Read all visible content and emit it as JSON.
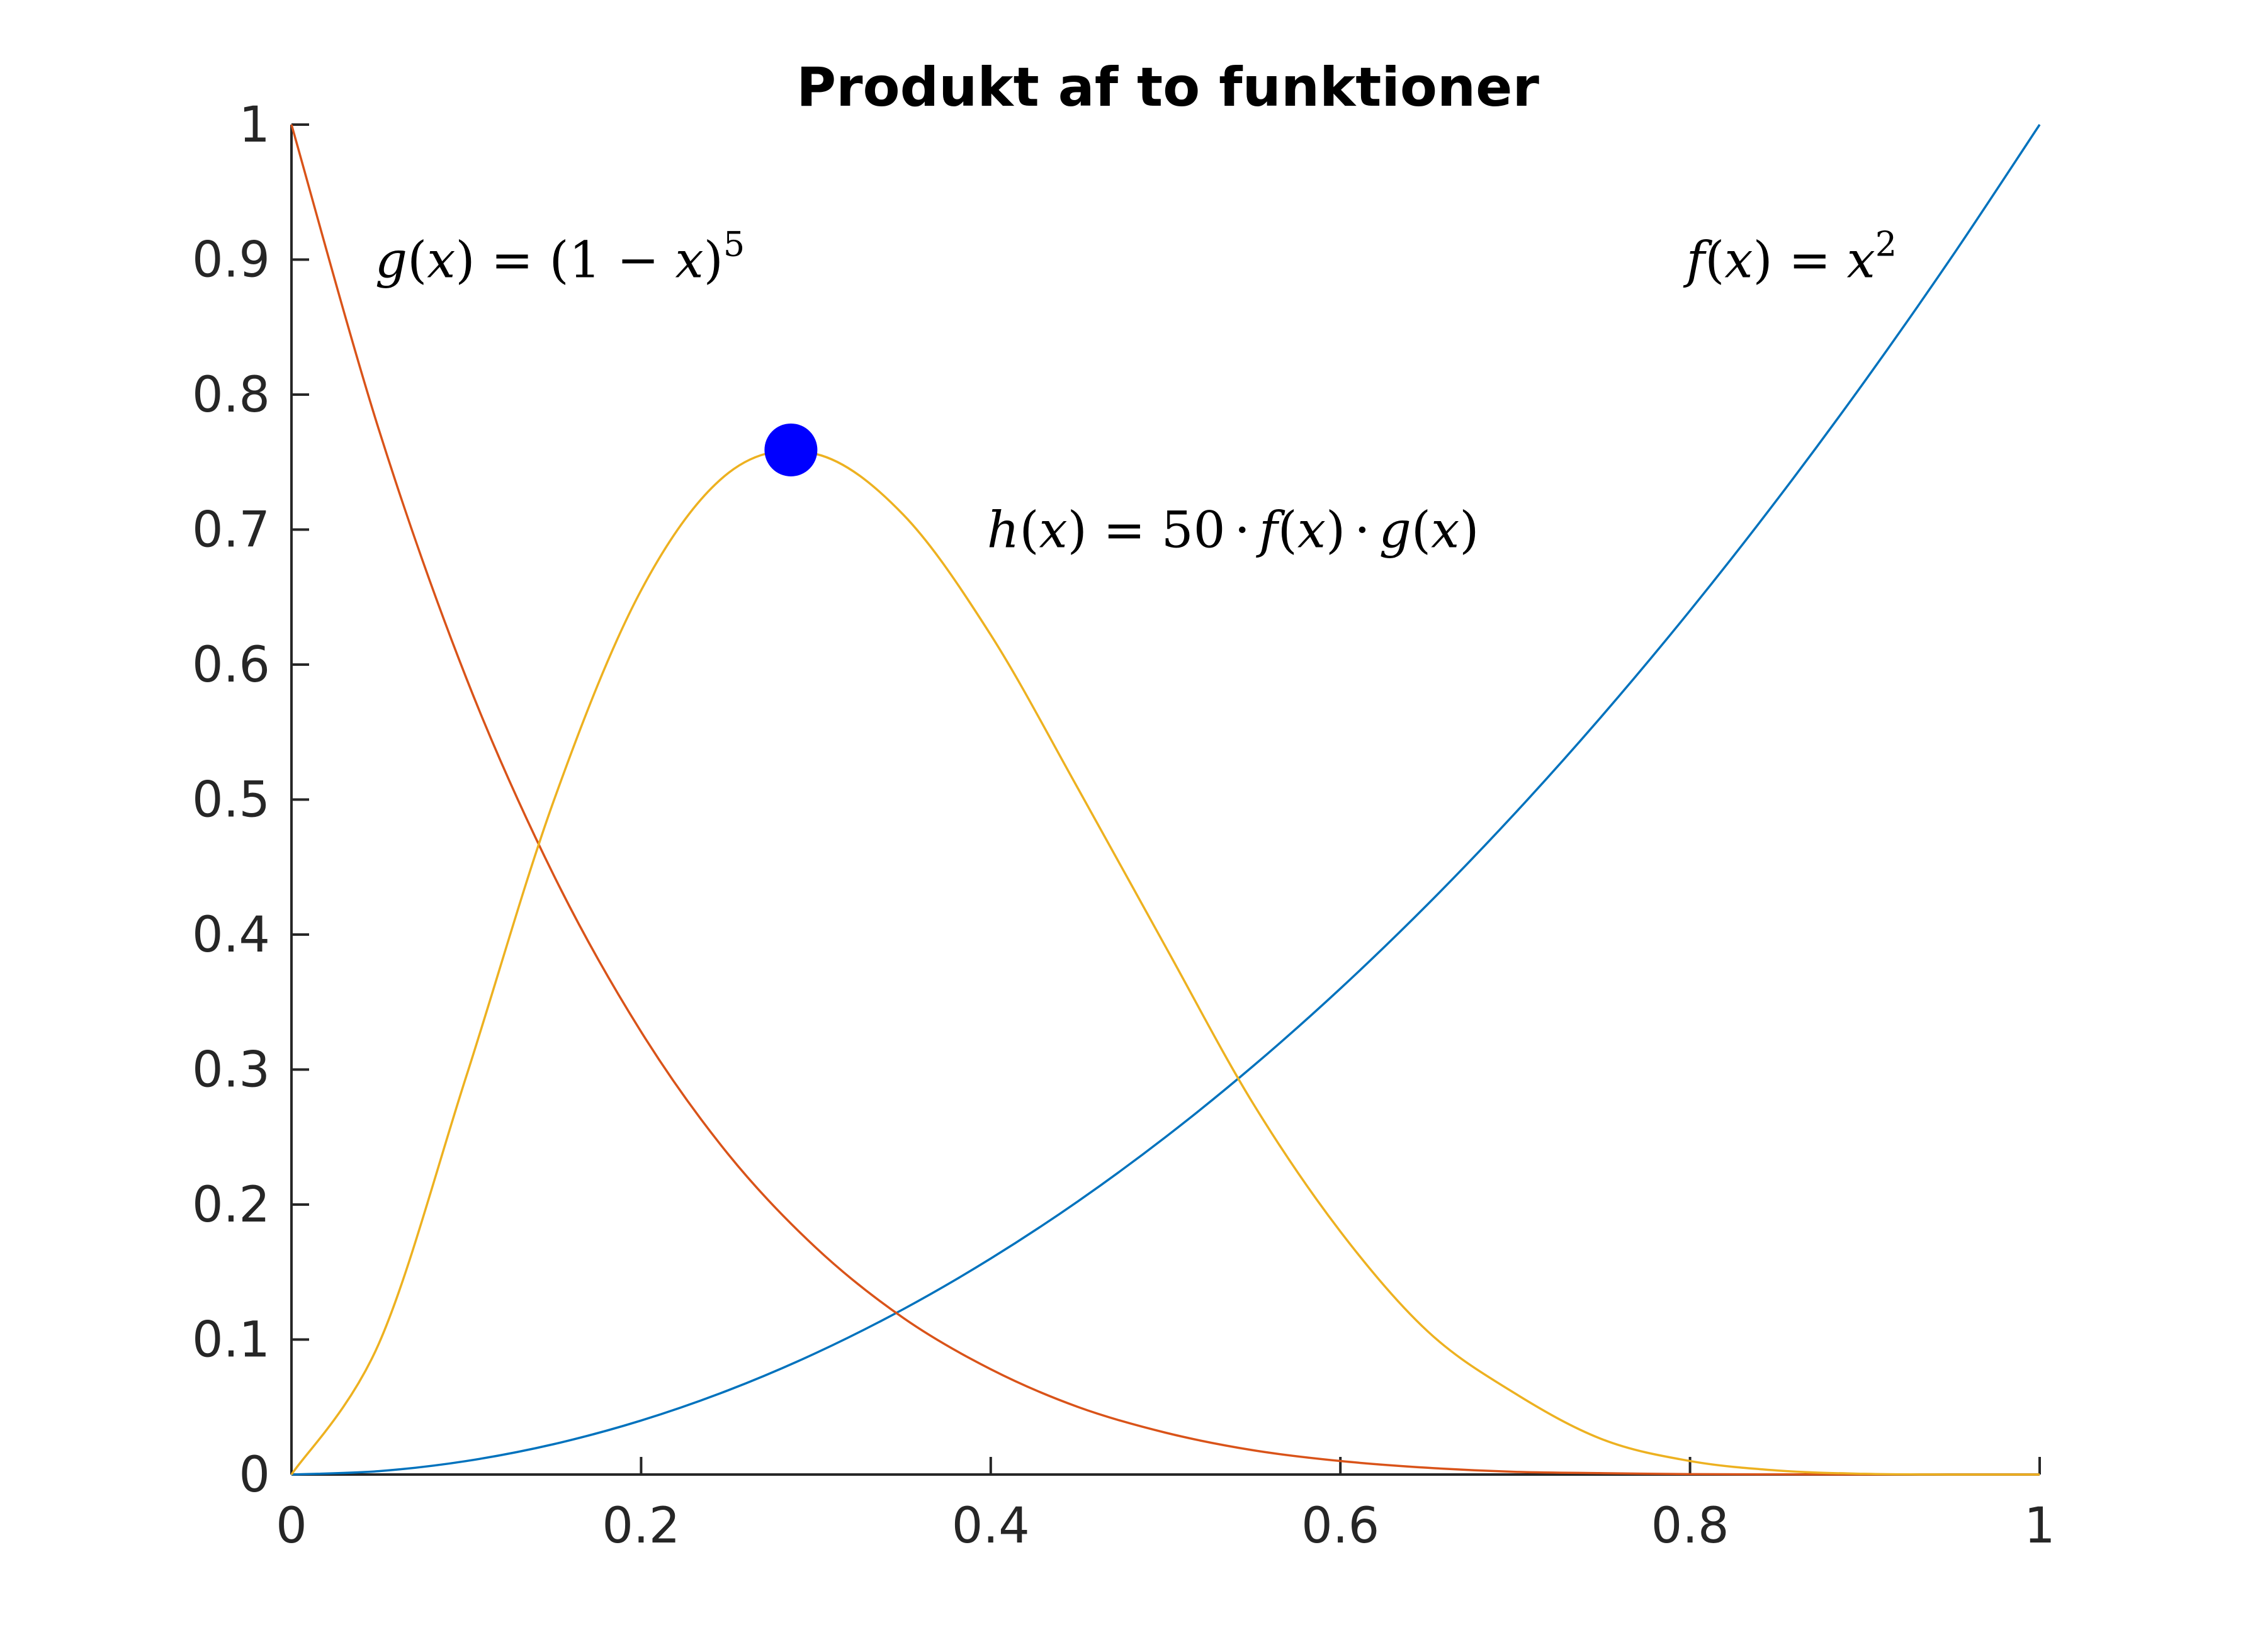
{
  "chart_data": {
    "type": "line",
    "title": "Produkt af to funktioner",
    "xlabel": "",
    "ylabel": "",
    "xlim": [
      0,
      1
    ],
    "ylim": [
      0,
      1
    ],
    "grid": false,
    "x_ticks": [
      "0",
      "0.2",
      "0.4",
      "0.6",
      "0.8",
      "1"
    ],
    "y_ticks": [
      "0",
      "0.1",
      "0.2",
      "0.3",
      "0.4",
      "0.5",
      "0.6",
      "0.7",
      "0.8",
      "0.9",
      "1"
    ],
    "x": [
      0,
      0.05,
      0.1,
      0.15,
      0.2,
      0.25,
      0.3,
      0.35,
      0.4,
      0.45,
      0.5,
      0.55,
      0.6,
      0.65,
      0.7,
      0.75,
      0.8,
      0.85,
      0.9,
      0.95,
      1
    ],
    "series": [
      {
        "formula": "f(x) = x^2",
        "color": "#0072BD",
        "values": [
          0,
          0.0025,
          0.01,
          0.0225,
          0.04,
          0.0625,
          0.09,
          0.1225,
          0.16,
          0.2025,
          0.25,
          0.3025,
          0.36,
          0.4225,
          0.49,
          0.5625,
          0.64,
          0.7225,
          0.81,
          0.9025,
          1
        ]
      },
      {
        "formula": "g(x) = (1-x)^5",
        "color": "#D95319",
        "values": [
          1,
          0.774,
          0.59,
          0.444,
          0.328,
          0.237,
          0.168,
          0.116,
          0.078,
          0.05,
          0.031,
          0.018,
          0.01,
          0.005,
          0.002,
          0.001,
          0.0003,
          0.0001,
          0,
          0,
          0
        ]
      },
      {
        "formula": "h(x) = 50 * f(x) * g(x)",
        "color": "#EDB120",
        "values": [
          0,
          0.097,
          0.295,
          0.499,
          0.655,
          0.742,
          0.756,
          0.711,
          0.622,
          0.508,
          0.391,
          0.275,
          0.18,
          0.106,
          0.06,
          0.026,
          0.01,
          0.003,
          0.0005,
          0,
          0
        ]
      }
    ],
    "marker": {
      "x": 0.2857,
      "y": 0.759,
      "color": "#0000FF"
    },
    "annotations": {
      "g": {
        "fn": "g",
        "var": "x",
        "base": "(1 − ",
        "close": ")",
        "exp": "5",
        "x": 0.05,
        "y": 0.9
      },
      "f": {
        "fn": "f",
        "var": "x",
        "exp": "2",
        "x": 0.8,
        "y": 0.9
      },
      "h": {
        "fn": "h",
        "var": "x",
        "coef": "50",
        "dot": "·",
        "f": "f",
        "g": "g",
        "x": 0.4,
        "y": 0.7
      }
    }
  }
}
